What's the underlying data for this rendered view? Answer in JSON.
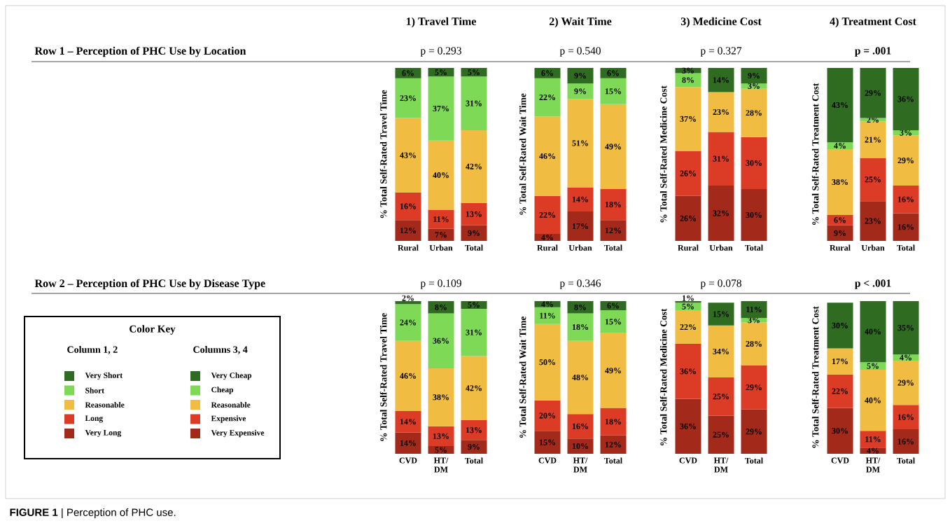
{
  "chart_data": [
    {
      "type": "bar",
      "stacked": true,
      "title": "1) Travel Time",
      "subtitle": "p = 0.293",
      "ylabel": "% Total Self-Rated Travel Time",
      "categories": [
        "Rural",
        "Urban",
        "Total"
      ],
      "legend": "left",
      "legend_title": "Column 1, 2",
      "annotations": [
        "Row 1 – Perception of PHC Use by Location",
        "**FIGURE 1** | Perception of PHC use."
      ],
      "series": [
        {
          "name": "Very Long",
          "color": "#a3291a",
          "values": [
            12,
            7,
            9
          ],
          "value_labels": [
            "12%",
            "7%",
            "9%"
          ]
        },
        {
          "name": "Long",
          "color": "#dc3b26",
          "values": [
            16,
            11,
            13
          ],
          "value_labels": [
            "16%",
            "11%",
            "13%"
          ]
        },
        {
          "name": "Reasonable",
          "color": "#f0bc42",
          "values": [
            43,
            40,
            42
          ],
          "value_labels": [
            "43%",
            "40%",
            "42%"
          ]
        },
        {
          "name": "Short",
          "color": "#7ed957",
          "values": [
            23,
            37,
            31
          ],
          "value_labels": [
            "23%",
            "37%",
            "31%"
          ]
        },
        {
          "name": "Very Short",
          "color": "#2f6b20",
          "values": [
            6,
            5,
            5
          ],
          "value_labels": [
            "6%",
            "5%",
            "5%"
          ]
        }
      ]
    },
    {
      "type": "bar",
      "stacked": true,
      "title": "2) Wait Time",
      "subtitle": "p = 0.540",
      "ylabel": "% Total Self-Rated Wait Time",
      "categories": [
        "Rural",
        "Urban",
        "Total"
      ],
      "series": [
        {
          "color": "#a3291a",
          "values": [
            4,
            17,
            12
          ],
          "value_labels": [
            "4%",
            "17%",
            "12%"
          ]
        },
        {
          "color": "#dc3b26",
          "values": [
            22,
            14,
            18
          ],
          "value_labels": [
            "22%",
            "14%",
            "18%"
          ]
        },
        {
          "color": "#f0bc42",
          "values": [
            46,
            51,
            49
          ],
          "value_labels": [
            "46%",
            "51%",
            "49%"
          ]
        },
        {
          "color": "#7ed957",
          "values": [
            22,
            9,
            15
          ],
          "value_labels": [
            "22%",
            "9%",
            "15%"
          ]
        },
        {
          "color": "#2f6b20",
          "values": [
            6,
            9,
            6
          ],
          "value_labels": [
            "6%",
            "9%",
            "6%"
          ]
        }
      ]
    },
    {
      "type": "bar",
      "stacked": true,
      "title": "3) Medicine Cost",
      "subtitle": "p = 0.327",
      "ylabel": "% Total Self-Rated Medicine Cost",
      "categories": [
        "Rural",
        "Urban",
        "Total"
      ],
      "legend": "left",
      "legend_title": "Columns 3, 4",
      "series": [
        {
          "name": "Very Expensive",
          "color": "#a3291a",
          "values": [
            26,
            32,
            30
          ],
          "value_labels": [
            "26%",
            "32%",
            "30%"
          ]
        },
        {
          "name": "Expensive",
          "color": "#dc3b26",
          "values": [
            26,
            31,
            30
          ],
          "value_labels": [
            "26%",
            "31%",
            "30%"
          ]
        },
        {
          "name": "Reasonable",
          "color": "#f0bc42",
          "values": [
            37,
            23,
            28
          ],
          "value_labels": [
            "37%",
            "23%",
            "28%"
          ]
        },
        {
          "name": "Cheap",
          "color": "#7ed957",
          "values": [
            8,
            null,
            3
          ],
          "value_labels": [
            "8%",
            null,
            "3%"
          ]
        },
        {
          "name": "Very Cheap",
          "color": "#2f6b20",
          "values": [
            3,
            14,
            9
          ],
          "value_labels": [
            "3%",
            "14%",
            "9%"
          ]
        }
      ]
    },
    {
      "type": "bar",
      "stacked": true,
      "title": "4) Treatment Cost",
      "subtitle": "**p = .001**",
      "ylabel": "% Total Self-Rated Treatment Cost",
      "categories": [
        "Rural",
        "Urban",
        "Total"
      ],
      "series": [
        {
          "color": "#a3291a",
          "values": [
            9,
            23,
            16
          ],
          "value_labels": [
            "9%",
            "23%",
            "16%"
          ]
        },
        {
          "color": "#dc3b26",
          "values": [
            6,
            25,
            16
          ],
          "value_labels": [
            "6%",
            "25%",
            "16%"
          ]
        },
        {
          "color": "#f0bc42",
          "values": [
            38,
            21,
            29
          ],
          "value_labels": [
            "38%",
            "21%",
            "29%"
          ]
        },
        {
          "color": "#7ed957",
          "values": [
            4,
            2,
            3
          ],
          "value_labels": [
            "4%",
            "2%",
            "3%"
          ]
        },
        {
          "color": "#2f6b20",
          "values": [
            43,
            29,
            36
          ],
          "value_labels": [
            "43%",
            "29%",
            "36%"
          ]
        }
      ]
    },
    {
      "type": "bar",
      "stacked": true,
      "subtitle": "p = 0.109",
      "ylabel": "% Total Self-Rated Travel Time",
      "categories": [
        "CVD",
        "HT/ DM",
        "Total"
      ],
      "annotations": [
        "Row 2 – Perception of PHC Use by Disease Type"
      ],
      "series": [
        {
          "color": "#a3291a",
          "values": [
            14,
            5,
            9
          ],
          "value_labels": [
            "14%",
            "5%",
            "9%"
          ]
        },
        {
          "color": "#dc3b26",
          "values": [
            14,
            13,
            13
          ],
          "value_labels": [
            "14%",
            "13%",
            "13%"
          ]
        },
        {
          "color": "#f0bc42",
          "values": [
            46,
            38,
            42
          ],
          "value_labels": [
            "46%",
            "38%",
            "42%"
          ]
        },
        {
          "color": "#7ed957",
          "values": [
            24,
            36,
            31
          ],
          "value_labels": [
            "24%",
            "36%",
            "31%"
          ]
        },
        {
          "color": "#2f6b20",
          "values": [
            2,
            8,
            5
          ],
          "value_labels": [
            "2%",
            "8%",
            "5%"
          ]
        }
      ]
    },
    {
      "type": "bar",
      "stacked": true,
      "subtitle": "p =  0.346",
      "ylabel": "% Total Self-Rated Wait Time",
      "categories": [
        "CVD",
        "HT/ DM",
        "Total"
      ],
      "series": [
        {
          "color": "#a3291a",
          "values": [
            15,
            10,
            12
          ],
          "value_labels": [
            "15%",
            "10%",
            "12%"
          ]
        },
        {
          "color": "#dc3b26",
          "values": [
            20,
            16,
            18
          ],
          "value_labels": [
            "20%",
            "16%",
            "18%"
          ]
        },
        {
          "color": "#f0bc42",
          "values": [
            50,
            48,
            49
          ],
          "value_labels": [
            "50%",
            "48%",
            "49%"
          ]
        },
        {
          "color": "#7ed957",
          "values": [
            11,
            18,
            15
          ],
          "value_labels": [
            "11%",
            "18%",
            "15%"
          ]
        },
        {
          "color": "#2f6b20",
          "values": [
            4,
            8,
            6
          ],
          "value_labels": [
            "4%",
            "8%",
            "6%"
          ]
        }
      ]
    },
    {
      "type": "bar",
      "stacked": true,
      "subtitle": "p = 0.078",
      "ylabel": "% Total Self-Rated Medicine Cost",
      "categories": [
        "CVD",
        "HT/ DM",
        "Total"
      ],
      "series": [
        {
          "color": "#a3291a",
          "values": [
            36,
            25,
            29
          ],
          "value_labels": [
            "36%",
            "25%",
            "29%"
          ]
        },
        {
          "color": "#dc3b26",
          "values": [
            36,
            25,
            29
          ],
          "value_labels": [
            "36%",
            "25%",
            "29%"
          ]
        },
        {
          "color": "#f0bc42",
          "values": [
            22,
            34,
            28
          ],
          "value_labels": [
            "22%",
            "34%",
            "28%"
          ]
        },
        {
          "color": "#7ed957",
          "values": [
            5,
            null,
            3
          ],
          "value_labels": [
            "5%",
            null,
            "3%"
          ]
        },
        {
          "color": "#2f6b20",
          "values": [
            1,
            15,
            11
          ],
          "value_labels": [
            "1%",
            "15%",
            "11%"
          ]
        }
      ]
    },
    {
      "type": "bar",
      "stacked": true,
      "subtitle": "**p < .001**",
      "ylabel": "% Total Self-Rated Treatment Cost",
      "categories": [
        "CVD",
        "HT/ DM",
        "Total"
      ],
      "series": [
        {
          "color": "#a3291a",
          "values": [
            30,
            4,
            16
          ],
          "value_labels": [
            "30%",
            "4%",
            "16%"
          ]
        },
        {
          "color": "#dc3b26",
          "values": [
            22,
            11,
            16
          ],
          "value_labels": [
            "22%",
            "11%",
            "16%"
          ]
        },
        {
          "color": "#f0bc42",
          "values": [
            17,
            40,
            29
          ],
          "value_labels": [
            "17%",
            "40%",
            "29%"
          ]
        },
        {
          "color": "#7ed957",
          "values": [
            null,
            5,
            4
          ],
          "value_labels": [
            null,
            "5%",
            "4%"
          ]
        },
        {
          "color": "#2f6b20",
          "values": [
            30,
            40,
            35
          ],
          "value_labels": [
            "30%",
            "40%",
            "35%"
          ]
        }
      ]
    },
    {
      "type": "other",
      "title": "Color Key"
    }
  ]
}
